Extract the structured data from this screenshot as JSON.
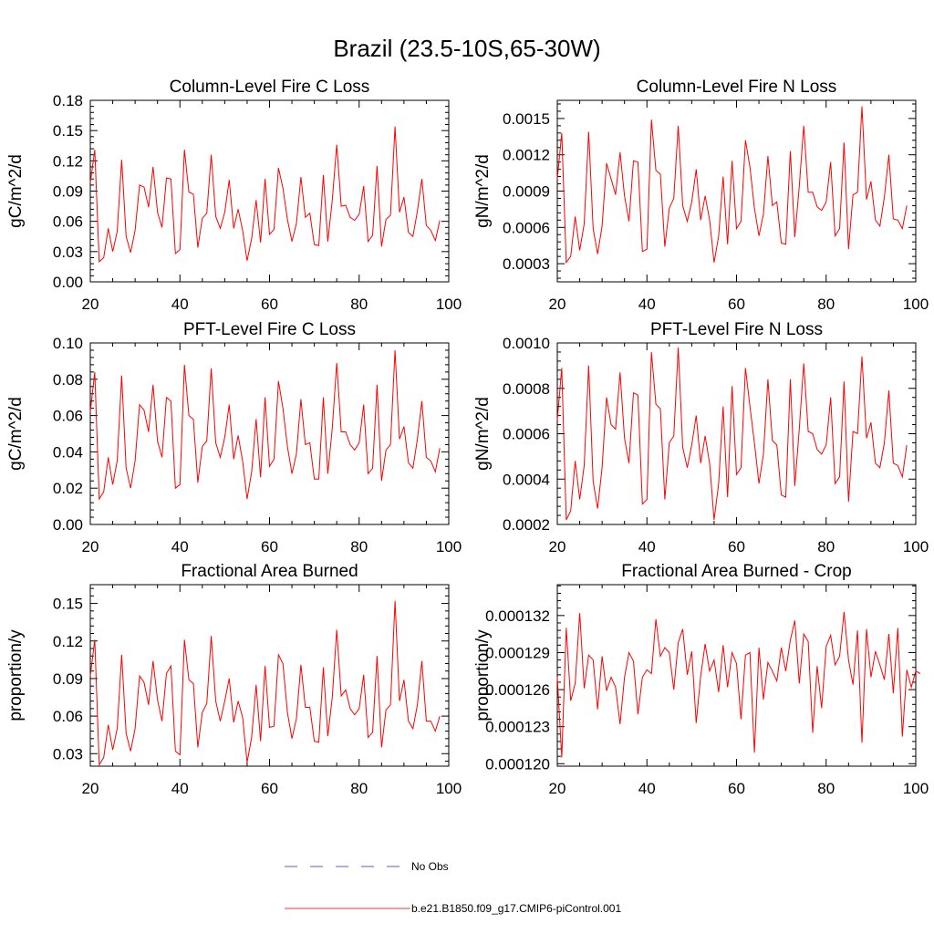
{
  "figure": {
    "title": "Brazil (23.5-10S,65-30W)",
    "legend": [
      {
        "label": "No Obs",
        "color": "#5b5bd6",
        "dash": "dashed"
      },
      {
        "label": "b.e21.B1850.f09_g17.CMIP6-piControl.001",
        "color": "#ff3030",
        "dash": "solid"
      }
    ]
  },
  "chart_data": [
    {
      "type": "line",
      "title": "Column-Level Fire C Loss",
      "ylabel": "gC/m^2/d",
      "xlim": [
        20,
        100
      ],
      "ylim": [
        0,
        0.18
      ],
      "xticks": [
        20,
        40,
        60,
        80,
        100
      ],
      "xtick_labels": [
        "20",
        "40",
        "60",
        "80",
        "100"
      ],
      "yticks": [
        0,
        0.03,
        0.06,
        0.09,
        0.12,
        0.15,
        0.18
      ],
      "ytick_labels": [
        "0.00",
        "0.03",
        "0.06",
        "0.09",
        "0.12",
        "0.15",
        "0.18"
      ],
      "grid": false,
      "x_start": 20,
      "series": [
        {
          "name": "b.e21.B1850.f09_g17.CMIP6-piControl.001",
          "color": "#ff0000",
          "values": [
            0.098,
            0.131,
            0.02,
            0.024,
            0.053,
            0.03,
            0.05,
            0.121,
            0.045,
            0.029,
            0.051,
            0.096,
            0.094,
            0.074,
            0.114,
            0.069,
            0.054,
            0.103,
            0.102,
            0.028,
            0.032,
            0.131,
            0.089,
            0.087,
            0.034,
            0.063,
            0.068,
            0.126,
            0.065,
            0.053,
            0.069,
            0.101,
            0.053,
            0.072,
            0.051,
            0.021,
            0.043,
            0.081,
            0.039,
            0.102,
            0.047,
            0.052,
            0.113,
            0.093,
            0.062,
            0.04,
            0.058,
            0.104,
            0.064,
            0.068,
            0.037,
            0.036,
            0.106,
            0.04,
            0.081,
            0.136,
            0.075,
            0.076,
            0.064,
            0.061,
            0.067,
            0.095,
            0.04,
            0.046,
            0.115,
            0.035,
            0.062,
            0.066,
            0.154,
            0.069,
            0.084,
            0.049,
            0.045,
            0.07,
            0.102,
            0.056,
            0.051,
            0.041,
            0.061
          ]
        }
      ]
    },
    {
      "type": "line",
      "title": "Column-Level Fire N Loss",
      "ylabel": "gN/m^2/d",
      "xlim": [
        20,
        100
      ],
      "ylim": [
        0.00015,
        0.00165
      ],
      "xticks": [
        20,
        40,
        60,
        80,
        100
      ],
      "xtick_labels": [
        "20",
        "40",
        "60",
        "80",
        "100"
      ],
      "yticks": [
        0.0003,
        0.0006,
        0.0009,
        0.0012,
        0.0015
      ],
      "ytick_labels": [
        "0.0003",
        "0.0006",
        "0.0009",
        "0.0012",
        "0.0015"
      ],
      "grid": false,
      "x_start": 20,
      "series": [
        {
          "name": "b.e21.B1850.f09_g17.CMIP6-piControl.001",
          "color": "#ff0000",
          "values": [
            0.001,
            0.00138,
            0.00031,
            0.00036,
            0.00069,
            0.00041,
            0.00063,
            0.00139,
            0.00059,
            0.00038,
            0.00061,
            0.00113,
            0.001,
            0.00087,
            0.00122,
            0.00086,
            0.00065,
            0.00115,
            0.00114,
            0.0004,
            0.00042,
            0.00149,
            0.00107,
            0.00104,
            0.00044,
            0.00076,
            0.00084,
            0.00144,
            0.00078,
            0.00065,
            0.00081,
            0.00108,
            0.00066,
            0.00086,
            0.00066,
            0.00031,
            0.00053,
            0.00102,
            0.00046,
            0.00115,
            0.00059,
            0.00065,
            0.00132,
            0.0011,
            0.00076,
            0.00053,
            0.00071,
            0.00119,
            0.00078,
            0.00081,
            0.00047,
            0.00046,
            0.00123,
            0.00052,
            0.00094,
            0.00144,
            0.00089,
            0.00089,
            0.00077,
            0.00074,
            0.00081,
            0.00114,
            0.00053,
            0.00059,
            0.0013,
            0.00042,
            0.00087,
            0.00089,
            0.0016,
            0.00083,
            0.00098,
            0.00066,
            0.00061,
            0.00085,
            0.0012,
            0.00067,
            0.00066,
            0.00059,
            0.00078
          ]
        }
      ]
    },
    {
      "type": "line",
      "title": "PFT-Level Fire C Loss",
      "ylabel": "gC/m^2/d",
      "xlim": [
        20,
        100
      ],
      "ylim": [
        0,
        0.1
      ],
      "xticks": [
        20,
        40,
        60,
        80,
        100
      ],
      "xtick_labels": [
        "20",
        "40",
        "60",
        "80",
        "100"
      ],
      "yticks": [
        0,
        0.02,
        0.04,
        0.06,
        0.08,
        0.1
      ],
      "ytick_labels": [
        "0.00",
        "0.02",
        "0.04",
        "0.06",
        "0.08",
        "0.10"
      ],
      "grid": false,
      "x_start": 20,
      "series": [
        {
          "name": "b.e21.B1850.f09_g17.CMIP6-piControl.001",
          "color": "#ff0000",
          "values": [
            0.062,
            0.084,
            0.014,
            0.018,
            0.037,
            0.022,
            0.035,
            0.082,
            0.031,
            0.02,
            0.035,
            0.066,
            0.063,
            0.051,
            0.077,
            0.046,
            0.037,
            0.07,
            0.068,
            0.02,
            0.022,
            0.088,
            0.06,
            0.058,
            0.023,
            0.043,
            0.046,
            0.086,
            0.045,
            0.037,
            0.048,
            0.066,
            0.036,
            0.049,
            0.035,
            0.014,
            0.029,
            0.058,
            0.026,
            0.07,
            0.032,
            0.036,
            0.079,
            0.064,
            0.043,
            0.028,
            0.039,
            0.069,
            0.044,
            0.045,
            0.025,
            0.025,
            0.07,
            0.028,
            0.053,
            0.089,
            0.051,
            0.051,
            0.044,
            0.041,
            0.045,
            0.066,
            0.028,
            0.031,
            0.077,
            0.024,
            0.041,
            0.044,
            0.096,
            0.047,
            0.054,
            0.034,
            0.031,
            0.047,
            0.068,
            0.037,
            0.035,
            0.029,
            0.042
          ]
        }
      ]
    },
    {
      "type": "line",
      "title": "PFT-Level Fire N Loss",
      "ylabel": "gN/m^2/d",
      "xlim": [
        20,
        100
      ],
      "ylim": [
        0.0002,
        0.001
      ],
      "xticks": [
        20,
        40,
        60,
        80,
        100
      ],
      "xtick_labels": [
        "20",
        "40",
        "60",
        "80",
        "100"
      ],
      "yticks": [
        0.0002,
        0.0004,
        0.0006,
        0.0008,
        0.001
      ],
      "ytick_labels": [
        "0.0002",
        "0.0004",
        "0.0006",
        "0.0008",
        "0.0010"
      ],
      "grid": false,
      "x_start": 20,
      "series": [
        {
          "name": "b.e21.B1850.f09_g17.CMIP6-piControl.001",
          "color": "#ff0000",
          "values": [
            0.00066,
            0.00089,
            0.00022,
            0.00026,
            0.00048,
            0.00031,
            0.00046,
            0.0009,
            0.00039,
            0.00027,
            0.00045,
            0.00076,
            0.00064,
            0.00062,
            0.00087,
            0.00058,
            0.00047,
            0.00078,
            0.00077,
            0.00029,
            0.00031,
            0.00096,
            0.00073,
            0.00071,
            0.00031,
            0.00056,
            0.00059,
            0.00098,
            0.00054,
            0.00045,
            0.00055,
            0.00068,
            0.00047,
            0.00059,
            0.00047,
            0.00022,
            0.00038,
            0.00072,
            0.00032,
            0.00081,
            0.00042,
            0.00045,
            0.00089,
            0.00072,
            0.00056,
            0.00038,
            0.00051,
            0.00084,
            0.00057,
            0.00055,
            0.00033,
            0.00032,
            0.00084,
            0.00037,
            0.00062,
            0.00091,
            0.00061,
            0.0006,
            0.00053,
            0.00051,
            0.00055,
            0.00076,
            0.00038,
            0.00041,
            0.00083,
            0.0003,
            0.00061,
            0.0006,
            0.00094,
            0.00058,
            0.00065,
            0.00047,
            0.00045,
            0.00056,
            0.00079,
            0.00047,
            0.00046,
            0.00041,
            0.00055
          ]
        }
      ]
    },
    {
      "type": "line",
      "title": "Fractional Area Burned",
      "ylabel": "proportion/y",
      "xlim": [
        20,
        100
      ],
      "ylim": [
        0.02,
        0.165
      ],
      "xticks": [
        20,
        40,
        60,
        80,
        100
      ],
      "xtick_labels": [
        "20",
        "40",
        "60",
        "80",
        "100"
      ],
      "yticks": [
        0.03,
        0.06,
        0.09,
        0.12,
        0.15
      ],
      "ytick_labels": [
        "0.03",
        "0.06",
        "0.09",
        "0.12",
        "0.15"
      ],
      "grid": false,
      "x_start": 20,
      "series": [
        {
          "name": "b.e21.B1850.f09_g17.CMIP6-piControl.001",
          "color": "#ff0000",
          "values": [
            0.092,
            0.121,
            0.021,
            0.027,
            0.053,
            0.033,
            0.05,
            0.109,
            0.046,
            0.032,
            0.05,
            0.092,
            0.087,
            0.069,
            0.104,
            0.073,
            0.056,
            0.094,
            0.1,
            0.032,
            0.029,
            0.121,
            0.089,
            0.086,
            0.035,
            0.063,
            0.07,
            0.124,
            0.072,
            0.056,
            0.072,
            0.09,
            0.055,
            0.072,
            0.059,
            0.023,
            0.043,
            0.085,
            0.04,
            0.1,
            0.051,
            0.052,
            0.109,
            0.102,
            0.063,
            0.042,
            0.058,
            0.101,
            0.067,
            0.067,
            0.04,
            0.039,
            0.099,
            0.044,
            0.075,
            0.129,
            0.076,
            0.081,
            0.066,
            0.061,
            0.066,
            0.093,
            0.043,
            0.047,
            0.108,
            0.035,
            0.065,
            0.069,
            0.152,
            0.072,
            0.089,
            0.056,
            0.05,
            0.069,
            0.104,
            0.056,
            0.056,
            0.048,
            0.06
          ]
        }
      ]
    },
    {
      "type": "line",
      "title": "Fractional Area Burned - Crop",
      "ylabel": "proportion/y",
      "xlim": [
        20,
        100
      ],
      "ylim": [
        0.0001198,
        0.0001345
      ],
      "xticks": [
        20,
        40,
        60,
        80,
        100
      ],
      "xtick_labels": [
        "20",
        "40",
        "60",
        "80",
        "100"
      ],
      "yticks": [
        0.00012,
        0.000123,
        0.000126,
        0.000129,
        0.000132
      ],
      "ytick_labels": [
        "0.000120",
        "0.000123",
        "0.000126",
        "0.000129",
        "0.000132"
      ],
      "grid": false,
      "x_start": 20,
      "series": [
        {
          "name": "b.e21.B1850.f09_g17.CMIP6-piControl.001",
          "color": "#ff0000",
          "values": [
            0.000127,
            0.0001205,
            0.000131,
            0.0001251,
            0.0001265,
            0.0001322,
            0.0001261,
            0.0001288,
            0.0001284,
            0.0001244,
            0.0001287,
            0.0001259,
            0.000127,
            0.0001262,
            0.0001232,
            0.000127,
            0.000129,
            0.0001283,
            0.000124,
            0.000127,
            0.0001276,
            0.0001273,
            0.0001317,
            0.0001287,
            0.0001294,
            0.000129,
            0.000126,
            0.0001298,
            0.0001309,
            0.0001272,
            0.0001291,
            0.0001233,
            0.0001271,
            0.0001297,
            0.0001275,
            0.0001284,
            0.0001258,
            0.0001296,
            0.0001262,
            0.000129,
            0.0001281,
            0.0001236,
            0.0001288,
            0.000129,
            0.0001209,
            0.0001294,
            0.0001252,
            0.0001282,
            0.0001275,
            0.0001267,
            0.0001294,
            0.0001275,
            0.00013,
            0.0001316,
            0.0001265,
            0.0001305,
            0.0001299,
            0.0001225,
            0.0001279,
            0.0001245,
            0.0001295,
            0.0001304,
            0.000128,
            0.0001287,
            0.0001323,
            0.0001284,
            0.0001264,
            0.0001308,
            0.0001217,
            0.0001309,
            0.000127,
            0.0001291,
            0.000128,
            0.0001268,
            0.0001305,
            0.0001257,
            0.000131,
            0.0001222,
            0.0001276,
            0.0001262,
            0.0001275,
            0.0001273
          ]
        }
      ]
    }
  ]
}
